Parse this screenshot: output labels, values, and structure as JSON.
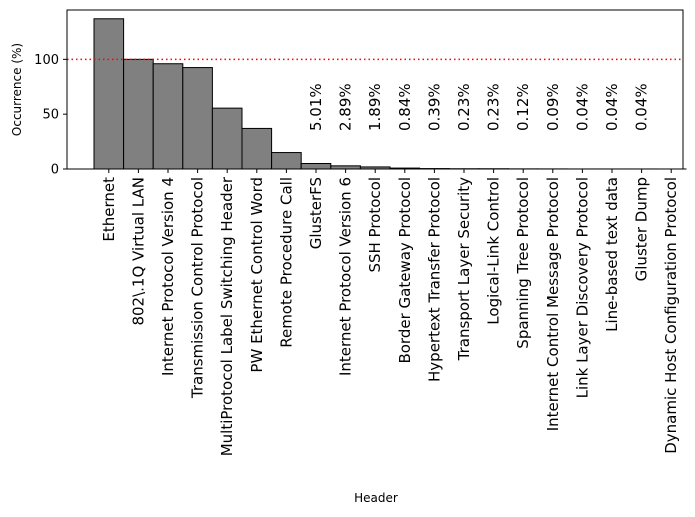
{
  "chart_data": {
    "type": "bar",
    "title": "",
    "xlabel": "Header",
    "ylabel": "Occurrence (%)",
    "ylim": [
      0,
      145
    ],
    "yticks": [
      0,
      50,
      100
    ],
    "reference_line": {
      "value": 100,
      "color": "#ff0000",
      "style": "dotted"
    },
    "bar_color": "#808080",
    "bar_edge_color": "#000000",
    "categories": [
      "Ethernet",
      "802\\.1Q Virtual LAN",
      "Internet Protocol Version 4",
      "Transmission Control Protocol",
      "MultiProtocol Label Switching Header",
      "PW Ethernet Control Word",
      "Remote Procedure Call",
      "GlusterFS",
      "Internet Protocol Version 6",
      "SSH Protocol",
      "Border Gateway Protocol",
      "Hypertext Transfer Protocol",
      "Transport Layer Security",
      "Logical-Link Control",
      "Spanning Tree Protocol",
      "Internet Control Message Protocol",
      "Link Layer Discovery Protocol",
      "Line-based text data",
      "Gluster Dump",
      "Dynamic Host Configuration Protocol"
    ],
    "values": [
      137,
      100,
      96,
      92.5,
      55.5,
      37,
      15,
      5.01,
      2.89,
      1.89,
      0.84,
      0.39,
      0.23,
      0.23,
      0.12,
      0.09,
      0.04,
      0.04,
      0.04,
      0.02
    ],
    "data_labels": [
      "",
      "",
      "",
      "",
      "",
      "",
      "",
      "5.01%",
      "2.89%",
      "1.89%",
      "0.84%",
      "0.39%",
      "0.23%",
      "0.23%",
      "0.12%",
      "0.09%",
      "0.04%",
      "0.04%",
      "0.04%",
      ""
    ]
  }
}
